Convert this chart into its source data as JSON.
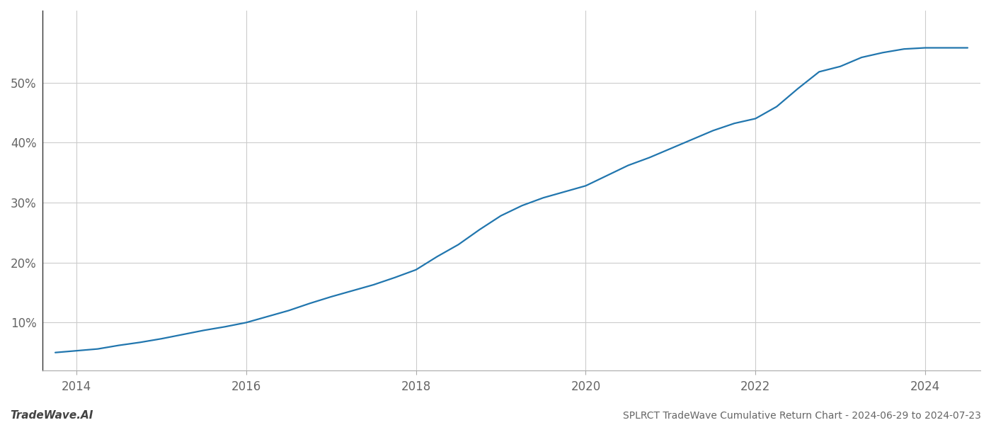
{
  "title": "SPLRCT TradeWave Cumulative Return Chart - 2024-06-29 to 2024-07-23",
  "watermark": "TradeWave.AI",
  "line_color": "#2176ae",
  "background_color": "#ffffff",
  "grid_color": "#cccccc",
  "x_years": [
    2013.75,
    2014.0,
    2014.25,
    2014.5,
    2014.75,
    2015.0,
    2015.25,
    2015.5,
    2015.75,
    2016.0,
    2016.25,
    2016.5,
    2016.75,
    2017.0,
    2017.25,
    2017.5,
    2017.75,
    2018.0,
    2018.25,
    2018.5,
    2018.75,
    2019.0,
    2019.25,
    2019.5,
    2019.75,
    2020.0,
    2020.25,
    2020.5,
    2020.75,
    2021.0,
    2021.25,
    2021.5,
    2021.75,
    2022.0,
    2022.25,
    2022.5,
    2022.75,
    2023.0,
    2023.25,
    2023.5,
    2023.75,
    2024.0,
    2024.25,
    2024.5
  ],
  "y_values": [
    0.05,
    0.053,
    0.056,
    0.062,
    0.067,
    0.073,
    0.08,
    0.087,
    0.093,
    0.1,
    0.11,
    0.12,
    0.132,
    0.143,
    0.153,
    0.163,
    0.175,
    0.188,
    0.21,
    0.23,
    0.255,
    0.278,
    0.295,
    0.308,
    0.318,
    0.328,
    0.345,
    0.362,
    0.375,
    0.39,
    0.405,
    0.42,
    0.432,
    0.44,
    0.46,
    0.49,
    0.518,
    0.527,
    0.542,
    0.55,
    0.556,
    0.558,
    0.558,
    0.558
  ],
  "x_ticks": [
    2014,
    2016,
    2018,
    2020,
    2022,
    2024
  ],
  "y_ticks": [
    0.1,
    0.2,
    0.3,
    0.4,
    0.5
  ],
  "y_tick_labels": [
    "10%",
    "20%",
    "30%",
    "40%",
    "50%"
  ],
  "xlim": [
    2013.6,
    2024.65
  ],
  "ylim": [
    0.02,
    0.62
  ],
  "line_width": 1.6,
  "tick_fontsize": 12,
  "title_fontsize": 10,
  "watermark_fontsize": 11
}
